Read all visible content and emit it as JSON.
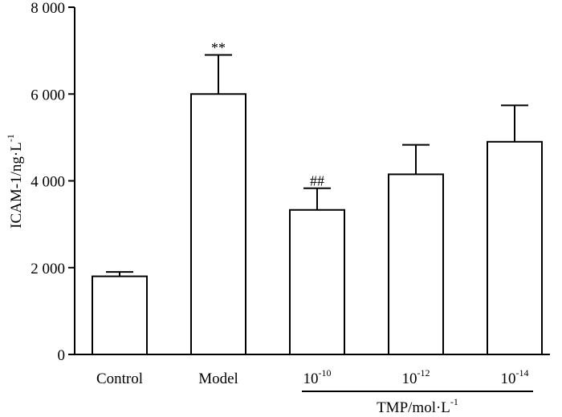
{
  "chart_data": {
    "type": "bar",
    "categories": [
      {
        "base": "Control",
        "exp": ""
      },
      {
        "base": "Model",
        "exp": ""
      },
      {
        "base": "10",
        "exp": "-10"
      },
      {
        "base": "10",
        "exp": "-12"
      },
      {
        "base": "10",
        "exp": "-14"
      }
    ],
    "values": [
      1800,
      6000,
      3330,
      4150,
      4900
    ],
    "errors": [
      100,
      900,
      500,
      680,
      840
    ],
    "annotations": [
      "",
      "**",
      "##",
      "",
      ""
    ],
    "ylabel": {
      "base": "ICAM-1/ng·L",
      "exp": "-1"
    },
    "xgroup_label": {
      "base": "TMP/mol·L",
      "exp": "-1"
    },
    "ylim": [
      0,
      8000
    ],
    "yticks": [
      0,
      2000,
      4000,
      6000,
      8000
    ],
    "ytick_labels": [
      "0",
      "2 000",
      "4 000",
      "6 000",
      "8 000"
    ],
    "title": "",
    "grid": false
  }
}
